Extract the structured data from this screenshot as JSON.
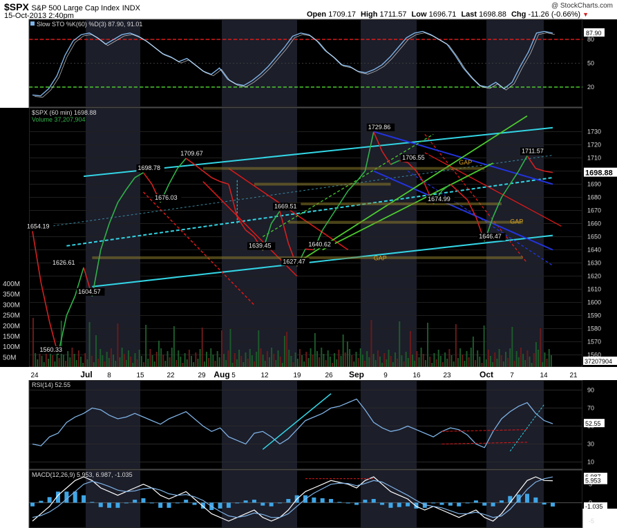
{
  "header": {
    "symbol": "$SPX",
    "name": "S&P 500 Large Cap Index",
    "exchange": "INDX",
    "datetime": "15-Oct-2013 2:40pm",
    "watermark": "@ StockCharts.com",
    "open_label": "Open",
    "open": "1709.17",
    "high_label": "High",
    "high": "1711.57",
    "low_label": "Low",
    "low": "1696.71",
    "last_label": "Last",
    "last": "1698.88",
    "chg_label": "Chg",
    "chg": "-11.26 (-0.66%)",
    "chg_arrow": "▼"
  },
  "colors": {
    "background": "#000000",
    "panel_border": "#4a4a4a",
    "shade": "#1c1e2a",
    "price_up": "#2fb34a",
    "price_down": "#d42020",
    "cyan": "#33d6e6",
    "red": "#e01818",
    "green": "#4ccc2e",
    "blue": "#2233dd",
    "olive": "#8a7a2a",
    "gap_text": "#d8a020",
    "indicator": "#7fb3e6",
    "macd_hist": "#3fa6e6",
    "axis_text": "#d8d8d8"
  },
  "chart_data": [
    {
      "type": "line",
      "panel": "stochastic",
      "legend": "Slow STO %K(60) %D(3) 87.90, 91.01",
      "y_ticks": [
        20,
        50,
        80
      ],
      "levels": [
        {
          "value": 80,
          "color": "red"
        },
        {
          "value": 20,
          "color": "green"
        }
      ],
      "last_value": "87.90",
      "ylim": [
        0,
        100
      ],
      "approx_k": [
        10,
        9,
        18,
        34,
        60,
        78,
        86,
        88,
        82,
        74,
        80,
        86,
        88,
        84,
        78,
        70,
        62,
        58,
        52,
        56,
        48,
        40,
        36,
        44,
        30,
        24,
        22,
        28,
        36,
        46,
        58,
        70,
        84,
        88,
        86,
        78,
        66,
        58,
        48,
        46,
        40,
        38,
        42,
        48,
        58,
        70,
        82,
        88,
        90,
        86,
        80,
        74,
        60,
        44,
        32,
        22,
        20,
        26,
        18,
        26,
        46,
        64,
        88,
        90,
        87.9
      ]
    },
    {
      "type": "line",
      "panel": "price",
      "legend": "$SPX (60 min) 1698.88",
      "volume_legend": "Volume 37,207,904",
      "ylim": [
        1555,
        1745
      ],
      "y_ticks": [
        1560,
        1570,
        1580,
        1590,
        1600,
        1610,
        1620,
        1630,
        1640,
        1650,
        1660,
        1670,
        1680,
        1690,
        1700,
        1710,
        1720,
        1730
      ],
      "last_value": "1698.88",
      "volume_ticks": [
        "400M",
        "350M",
        "300M",
        "250M",
        "200M",
        "150M",
        "100M",
        "50M"
      ],
      "volume_last": "37207904",
      "x_ticks": [
        "24",
        "Jul",
        "8",
        "15",
        "22",
        "29",
        "Aug",
        "5",
        "12",
        "19",
        "26",
        "Sep",
        "9",
        "16",
        "23",
        "Oct",
        "7",
        "14",
        "21"
      ],
      "x": [
        0,
        2,
        4,
        6,
        8,
        10,
        12,
        14,
        16,
        18,
        20,
        22,
        24,
        26,
        28,
        30,
        32,
        34,
        36,
        38,
        40,
        42,
        44,
        46,
        48,
        50,
        52,
        54,
        56,
        58,
        60,
        62,
        64,
        66,
        68,
        70,
        72,
        74,
        76,
        78,
        80,
        82,
        84,
        86,
        88,
        90,
        92,
        94,
        96,
        98,
        100,
        102,
        104,
        106,
        108,
        110,
        112,
        114,
        116,
        118,
        120,
        122
      ],
      "close": [
        1654.19,
        1615,
        1585,
        1560.33,
        1590,
        1605,
        1626.61,
        1604.57,
        1640,
        1660,
        1676,
        1686,
        1695,
        1698.78,
        1690,
        1676.03,
        1690,
        1702,
        1709.67,
        1705,
        1700,
        1695,
        1692,
        1690,
        1665,
        1655,
        1650,
        1639.45,
        1660,
        1669.51,
        1645,
        1627.47,
        1640.62,
        1640,
        1655,
        1665,
        1675,
        1685,
        1692,
        1700,
        1729.86,
        1715,
        1705,
        1708,
        1706.55,
        1700,
        1690,
        1674.99,
        1685,
        1690,
        1684,
        1678,
        1665,
        1646.47,
        1665,
        1680,
        1690,
        1700,
        1711.57,
        1702,
        1700,
        1698.88
      ],
      "annotations": [
        "1654.19",
        "1626.61",
        "1604.57",
        "1560.33",
        "1698.78",
        "1676.03",
        "1709.67",
        "1669.51",
        "1639.45",
        "1627.47",
        "1640.62",
        "1729.86",
        "1706.55",
        "1674.99",
        "1646.47",
        "1711.57"
      ],
      "gap_labels": [
        "GAP",
        "GAP",
        "GAP"
      ]
    },
    {
      "type": "line",
      "panel": "rsi",
      "legend": "RSI(14) 52.55",
      "y_ticks": [
        10,
        30,
        50,
        70,
        90
      ],
      "last_value": "52.55",
      "ylim": [
        5,
        98
      ],
      "approx_rsi": [
        30,
        28,
        38,
        42,
        54,
        60,
        64,
        70,
        68,
        62,
        58,
        60,
        64,
        60,
        56,
        52,
        58,
        62,
        66,
        58,
        50,
        44,
        48,
        38,
        34,
        30,
        42,
        44,
        38,
        30,
        36,
        46,
        56,
        60,
        64,
        70,
        72,
        76,
        80,
        68,
        54,
        48,
        44,
        46,
        50,
        46,
        42,
        38,
        44,
        48,
        46,
        40,
        30,
        26,
        44,
        58,
        66,
        72,
        76,
        64,
        56,
        52.55
      ]
    },
    {
      "type": "line",
      "panel": "macd",
      "legend": "MACD(12,26,9) 5.953, 6.987, -1.035",
      "y_ticks": [
        "5",
        "0",
        "-5"
      ],
      "value_labels": [
        "6.987",
        "5.953",
        "-1.035"
      ],
      "ylim": [
        -6.5,
        8.5
      ],
      "approx_macd": [
        -5,
        -3,
        -1,
        2,
        4,
        6,
        7,
        6,
        4,
        3,
        2,
        3,
        4,
        5,
        4,
        2,
        1,
        2,
        3,
        1,
        -1,
        -3,
        -4,
        -5,
        -4,
        -3,
        -2,
        -4,
        -5,
        -4,
        -2,
        1,
        3,
        4,
        5,
        6,
        5.5,
        5,
        4,
        6,
        7,
        5,
        3,
        2,
        1,
        -1,
        -2,
        -1,
        -2,
        -3,
        -4,
        -3,
        -2,
        -4,
        -5,
        -3,
        0,
        3,
        6,
        7,
        6,
        5.95
      ],
      "approx_signal": [
        -4,
        -3.5,
        -2.5,
        -1,
        1,
        3,
        5,
        5.8,
        5.2,
        4.4,
        3.4,
        3,
        3.2,
        3.8,
        4,
        3.4,
        2.4,
        2,
        2.2,
        1.6,
        0.6,
        -1,
        -2.4,
        -3.6,
        -4,
        -3.6,
        -2.8,
        -3.2,
        -4,
        -4,
        -3,
        -1,
        1,
        2.6,
        3.8,
        5,
        5.3,
        5.2,
        4.6,
        5.2,
        6,
        5.6,
        4.4,
        3.2,
        2,
        0.6,
        -0.6,
        -1,
        -1.4,
        -2.2,
        -3,
        -3,
        -2.6,
        -3.2,
        -4,
        -3.6,
        -1.8,
        0.8,
        3.6,
        5.6,
        6.5,
        6.99
      ]
    }
  ]
}
